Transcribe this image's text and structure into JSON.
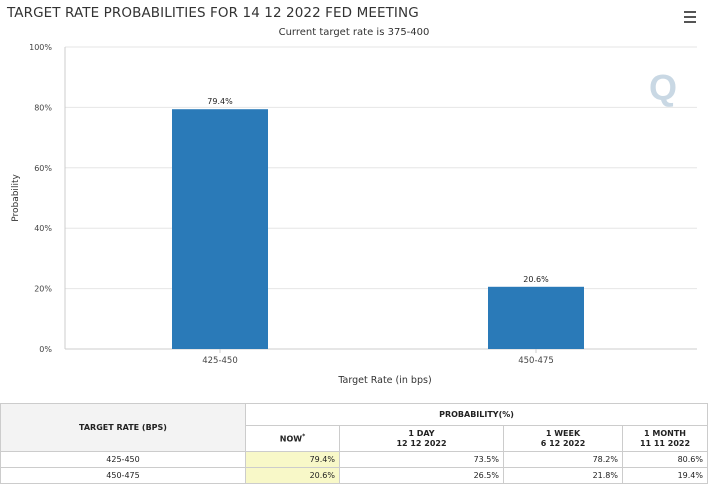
{
  "header": {
    "title": "TARGET RATE PROBABILITIES FOR 14 12 2022 FED MEETING",
    "subtitle": "Current target rate is 375-400",
    "menu_icon": "hamburger-menu-icon",
    "watermark": "Q"
  },
  "chart_data": {
    "type": "bar",
    "categories": [
      "425-450",
      "450-475"
    ],
    "values": [
      79.4,
      20.6
    ],
    "data_labels": [
      "79.4%",
      "20.6%"
    ],
    "xlabel": "Target Rate (in bps)",
    "ylabel": "Probability",
    "ylim": [
      0,
      100
    ],
    "yticks": [
      "0%",
      "20%",
      "40%",
      "60%",
      "80%",
      "100%"
    ],
    "bar_color": "#2a7ab8",
    "grid": true
  },
  "table": {
    "target_header": "TARGET RATE (BPS)",
    "prob_header": "PROBABILITY(%)",
    "columns": [
      {
        "label": "NOW",
        "sup": "*",
        "date": ""
      },
      {
        "label": "1 DAY",
        "sup": "",
        "date": "12 12 2022"
      },
      {
        "label": "1 WEEK",
        "sup": "",
        "date": "6 12 2022"
      },
      {
        "label": "1 MONTH",
        "sup": "",
        "date": "11 11 2022"
      }
    ],
    "rows": [
      {
        "rate": "425-450",
        "values": [
          "79.4%",
          "73.5%",
          "78.2%",
          "80.6%"
        ]
      },
      {
        "rate": "450-475",
        "values": [
          "20.6%",
          "26.5%",
          "21.8%",
          "19.4%"
        ]
      }
    ]
  }
}
